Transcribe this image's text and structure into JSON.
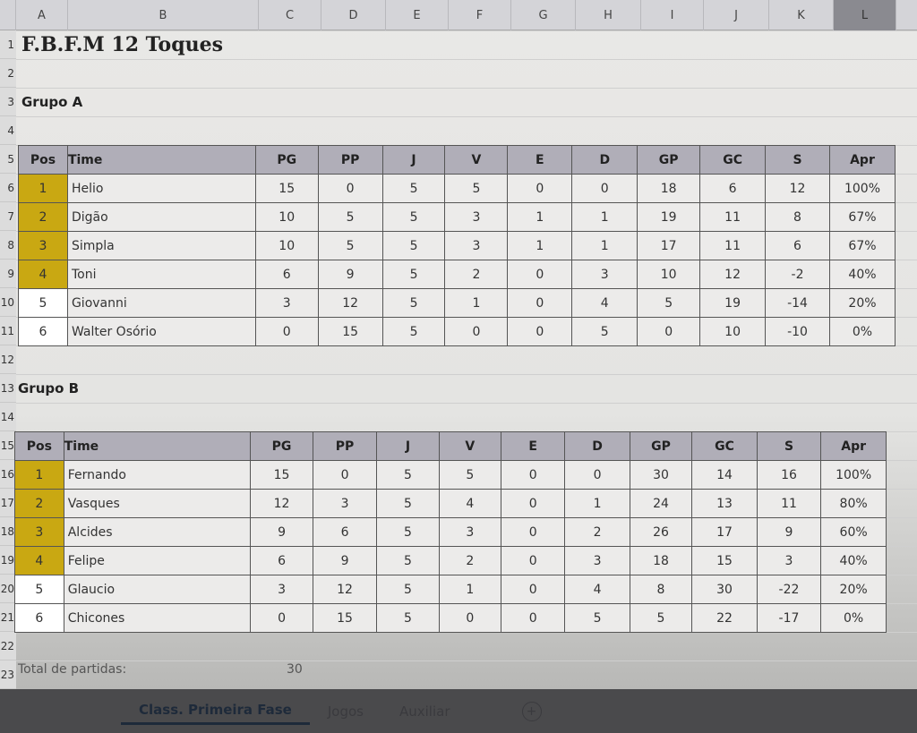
{
  "columns": [
    "A",
    "B",
    "C",
    "D",
    "E",
    "F",
    "G",
    "H",
    "I",
    "J",
    "K",
    "L"
  ],
  "selected_column": "L",
  "title": "F.B.F.M 12 Toques",
  "headers": [
    "Pos",
    "Time",
    "PG",
    "PP",
    "J",
    "V",
    "E",
    "D",
    "GP",
    "GC",
    "S",
    "Apr"
  ],
  "qualified_color": "#c9a812",
  "groups": [
    {
      "label": "Grupo A",
      "rows": [
        [
          "1",
          "Helio",
          "15",
          "0",
          "5",
          "5",
          "0",
          "0",
          "18",
          "6",
          "12",
          "100%"
        ],
        [
          "2",
          "Digão",
          "10",
          "5",
          "5",
          "3",
          "1",
          "1",
          "19",
          "11",
          "8",
          "67%"
        ],
        [
          "3",
          "Simpla",
          "10",
          "5",
          "5",
          "3",
          "1",
          "1",
          "17",
          "11",
          "6",
          "67%"
        ],
        [
          "4",
          "Toni",
          "6",
          "9",
          "5",
          "2",
          "0",
          "3",
          "10",
          "12",
          "-2",
          "40%"
        ],
        [
          "5",
          "Giovanni",
          "3",
          "12",
          "5",
          "1",
          "0",
          "4",
          "5",
          "19",
          "-14",
          "20%"
        ],
        [
          "6",
          "Walter Osório",
          "0",
          "15",
          "5",
          "0",
          "0",
          "5",
          "0",
          "10",
          "-10",
          "0%"
        ]
      ]
    },
    {
      "label": "Grupo B",
      "rows": [
        [
          "1",
          "Fernando",
          "15",
          "0",
          "5",
          "5",
          "0",
          "0",
          "30",
          "14",
          "16",
          "100%"
        ],
        [
          "2",
          "Vasques",
          "12",
          "3",
          "5",
          "4",
          "0",
          "1",
          "24",
          "13",
          "11",
          "80%"
        ],
        [
          "3",
          "Alcides",
          "9",
          "6",
          "5",
          "3",
          "0",
          "2",
          "26",
          "17",
          "9",
          "60%"
        ],
        [
          "4",
          "Felipe",
          "6",
          "9",
          "5",
          "2",
          "0",
          "3",
          "18",
          "15",
          "3",
          "40%"
        ],
        [
          "5",
          "Glaucio",
          "3",
          "12",
          "5",
          "1",
          "0",
          "4",
          "8",
          "30",
          "-22",
          "20%"
        ],
        [
          "6",
          "Chicones",
          "0",
          "15",
          "5",
          "0",
          "0",
          "5",
          "5",
          "22",
          "-17",
          "0%"
        ]
      ]
    }
  ],
  "total": {
    "label": "Total de partidas:",
    "value": "30"
  },
  "tabs": [
    "Class. Primeira Fase",
    "Jogos",
    "Auxiliar"
  ],
  "add_sheet_icon": "plus-circle-icon"
}
